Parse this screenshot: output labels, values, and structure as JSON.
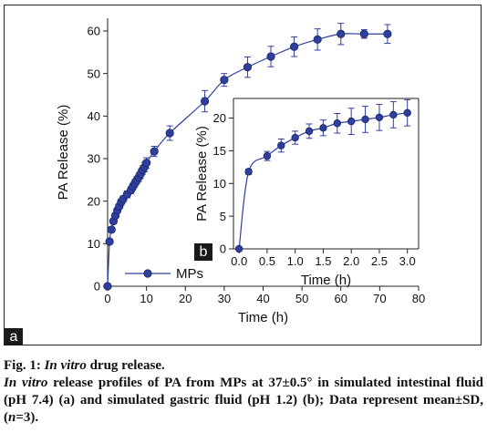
{
  "chart_data": [
    {
      "panel": "a",
      "type": "scatter",
      "xlabel": "Time (h)",
      "ylabel": "PA Release (%)",
      "xlim": [
        0,
        80
      ],
      "ylim": [
        0,
        63
      ],
      "xticks": [
        0,
        10,
        20,
        30,
        40,
        50,
        60,
        70,
        80
      ],
      "yticks": [
        0,
        10,
        20,
        30,
        40,
        50,
        60
      ],
      "grid": false,
      "legend": "bottom-left",
      "series": [
        {
          "name": "MPs",
          "color": "#2f3f9e",
          "x": [
            0,
            0.5,
            1,
            1.5,
            2,
            2.5,
            3,
            3.5,
            4,
            5,
            6,
            6.5,
            7,
            7.5,
            8,
            8.5,
            9,
            9.5,
            10,
            12,
            16,
            25,
            30,
            36,
            42,
            48,
            54,
            60,
            66,
            72
          ],
          "y": [
            0,
            10.5,
            13.3,
            15.3,
            16.6,
            17.8,
            18.8,
            19.8,
            20.5,
            21.6,
            22.6,
            23.4,
            24.2,
            24.9,
            25.6,
            26.4,
            27.3,
            28.0,
            29.0,
            31.7,
            36.0,
            43.5,
            48.5,
            51.5,
            54.0,
            56.3,
            58.0,
            59.3,
            59.3,
            59.3
          ],
          "err": [
            0,
            0.5,
            0.6,
            0.6,
            0.6,
            0.6,
            0.6,
            0.7,
            0.7,
            0.8,
            0.8,
            0.8,
            0.9,
            0.9,
            1.0,
            1.0,
            1.0,
            1.1,
            1.2,
            1.2,
            1.7,
            2.5,
            1.5,
            2.4,
            2.4,
            2.3,
            2.5,
            2.5,
            1.0,
            2.2
          ]
        }
      ]
    },
    {
      "panel": "b",
      "type": "scatter",
      "xlabel": "Time (h)",
      "ylabel": "PA Release (%)",
      "xlim": [
        -0.1,
        3.2
      ],
      "ylim": [
        0,
        23
      ],
      "xticks": [
        "0.0",
        "0.5",
        "1.0",
        "1.5",
        "2.0",
        "2.5",
        "3.0"
      ],
      "yticks": [
        0,
        5,
        10,
        15,
        20
      ],
      "grid": false,
      "series": [
        {
          "color": "#2f3f9e",
          "x": [
            0,
            0.17,
            0.5,
            0.75,
            1.0,
            1.25,
            1.5,
            1.75,
            2.0,
            2.25,
            2.5,
            2.75,
            3.0
          ],
          "y": [
            0,
            11.8,
            14.2,
            15.8,
            17.0,
            18.0,
            18.5,
            19.2,
            19.5,
            19.8,
            20.1,
            20.5,
            20.8
          ],
          "err": [
            0,
            0.4,
            0.7,
            1.0,
            1.0,
            1.1,
            1.2,
            1.5,
            2.0,
            2.0,
            2.0,
            2.0,
            2.0
          ]
        }
      ]
    }
  ],
  "labels": {
    "panel_a": "a",
    "panel_b": "b"
  },
  "caption": {
    "fig_num": "Fig. 1: ",
    "fig_title_italic": "In vitro",
    "fig_title_rest": " drug release.",
    "body_italic": "In vitro",
    "body_part1": " release profiles of PA from MPs at 37±0.5° in simulated intestinal fluid (pH 7.4) (a) and simulated gastric fluid (pH 1.2) (b); Data represent mean±SD, (",
    "n_italic": "n",
    "body_part2": "=3)."
  }
}
